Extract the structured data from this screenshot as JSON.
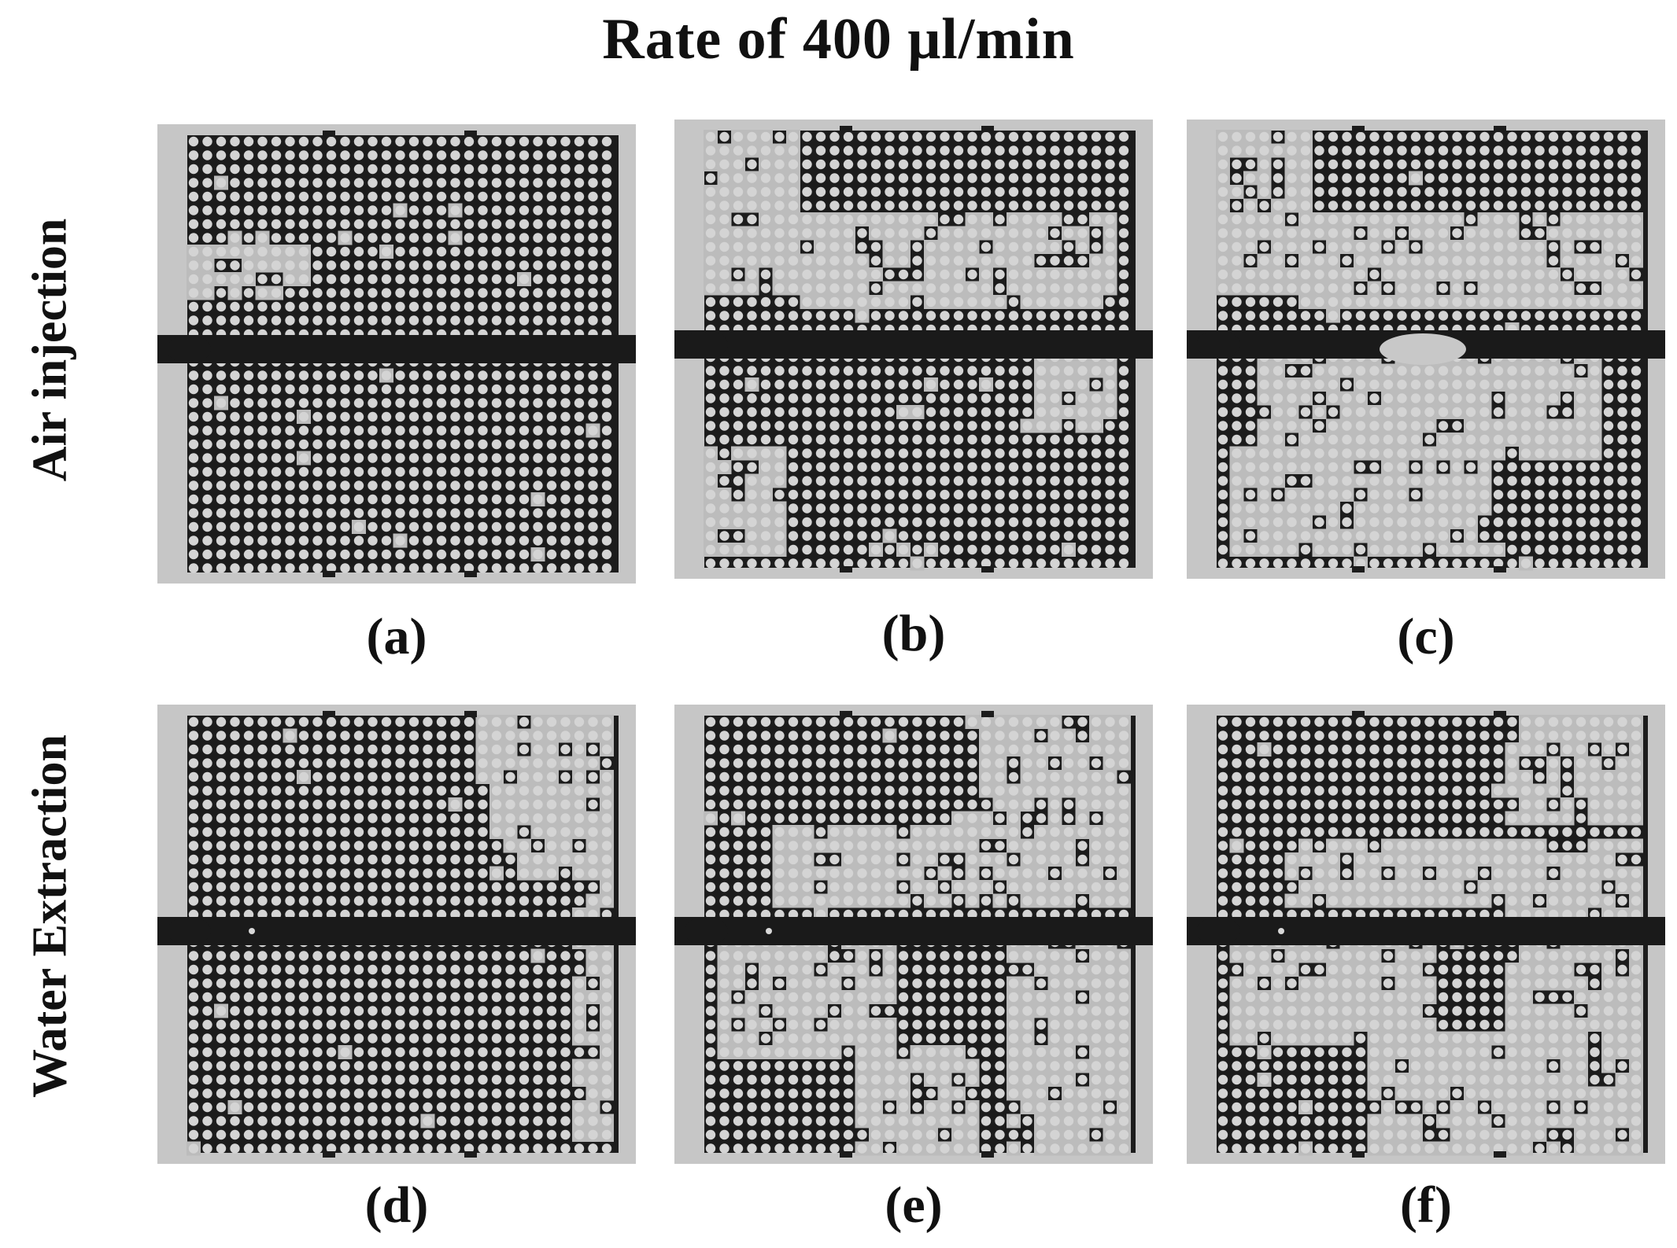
{
  "title": "Rate of 400 μl/min",
  "rows": [
    {
      "label": "Air injection"
    },
    {
      "label": "Water Extraction"
    }
  ],
  "panels": [
    {
      "caption": "(a)"
    },
    {
      "caption": "(b)"
    },
    {
      "caption": "(c)"
    },
    {
      "caption": "(d)"
    },
    {
      "caption": "(e)"
    },
    {
      "caption": "(f)"
    }
  ]
}
